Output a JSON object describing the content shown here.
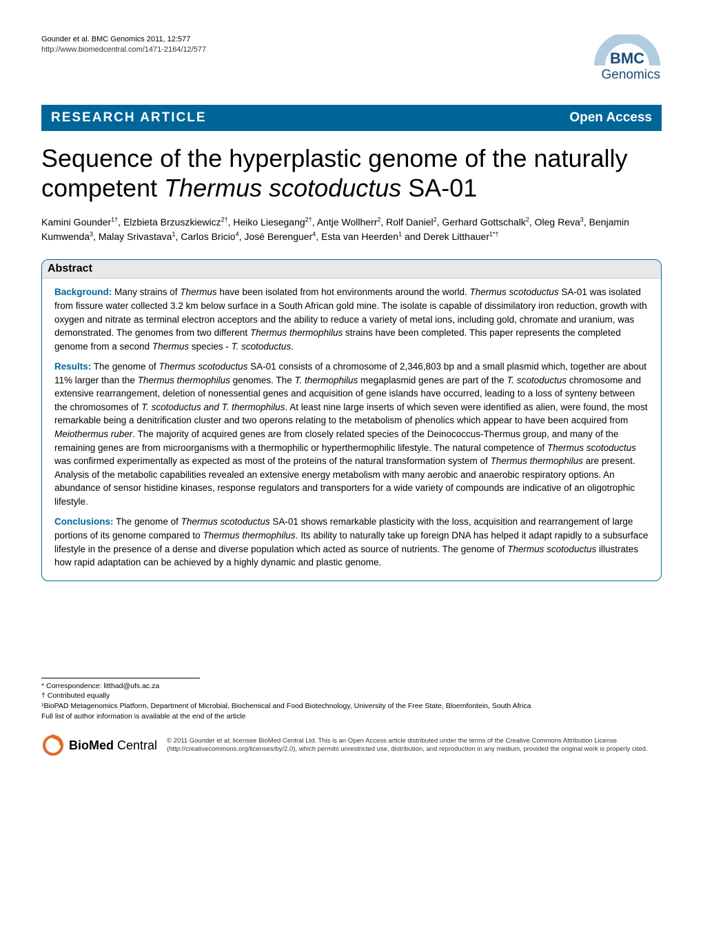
{
  "header": {
    "citation_line1": "Gounder et al. BMC Genomics 2011, 12:577",
    "citation_line2": "http://www.biomedcentral.com/1471-2164/12/577",
    "logo_bmc": "BMC",
    "logo_genomics": "Genomics",
    "logo_arc_color": "#b0cde0",
    "logo_text_color": "#1a4a7a"
  },
  "banner": {
    "left": "RESEARCH ARTICLE",
    "right": "Open Access",
    "bg_color": "#006699",
    "text_color": "#ffffff"
  },
  "title_parts": {
    "p1": "Sequence of the hyperplastic genome of the naturally competent ",
    "p2_italic": "Thermus scotoductus",
    "p3": " SA-01"
  },
  "authors_html": "Kamini Gounder<sup>1†</sup>, Elzbieta Brzuszkiewicz<sup>2†</sup>, Heiko Liesegang<sup>2†</sup>, Antje Wollherr<sup>2</sup>, Rolf Daniel<sup>2</sup>, Gerhard Gottschalk<sup>2</sup>, Oleg Reva<sup>3</sup>, Benjamin Kumwenda<sup>3</sup>, Malay Srivastava<sup>1</sup>, Carlos Bricio<sup>4</sup>, José Berenguer<sup>4</sup>, Esta van Heerden<sup>1</sup> and Derek Litthauer<sup>1*†</sup>",
  "abstract": {
    "heading": "Abstract",
    "background": {
      "label": "Background:",
      "text": " Many strains of <span class=\"italic\">Thermus</span> have been isolated from hot environments around the world. <span class=\"italic\">Thermus scotoductus</span> SA-01 was isolated from fissure water collected 3.2 km below surface in a South African gold mine. The isolate is capable of dissimilatory iron reduction, growth with oxygen and nitrate as terminal electron acceptors and the ability to reduce a variety of metal ions, including gold, chromate and uranium, was demonstrated. The genomes from two different <span class=\"italic\">Thermus thermophilus</span> strains have been completed. This paper represents the completed genome from a second <span class=\"italic\">Thermus</span> species - <span class=\"italic\">T. scotoductus</span>."
    },
    "results": {
      "label": "Results:",
      "text": " The genome of <span class=\"italic\">Thermus scotoductus</span> SA-01 consists of a chromosome of 2,346,803 bp and a small plasmid which, together are about 11% larger than the <span class=\"italic\">Thermus thermophilus</span> genomes. The <span class=\"italic\">T. thermophilus</span> megaplasmid genes are part of the <span class=\"italic\">T. scotoductus</span> chromosome and extensive rearrangement, deletion of nonessential genes and acquisition of gene islands have occurred, leading to a loss of synteny between the chromosomes of <span class=\"italic\">T. scotoductus and T. thermophilus</span>. At least nine large inserts of which seven were identified as alien, were found, the most remarkable being a denitrification cluster and two operons relating to the metabolism of phenolics which appear to have been acquired from <span class=\"italic\">Meiothermus ruber</span>. The majority of acquired genes are from closely related species of the Deinococcus-Thermus group, and many of the remaining genes are from microorganisms with a thermophilic or hyperthermophilic lifestyle. The natural competence of <span class=\"italic\">Thermus scotoductus</span> was confirmed experimentally as expected as most of the proteins of the natural transformation system of <span class=\"italic\">Thermus thermophilus</span> are present. Analysis of the metabolic capabilities revealed an extensive energy metabolism with many aerobic and anaerobic respiratory options. An abundance of sensor histidine kinases, response regulators and transporters for a wide variety of compounds are indicative of an oligotrophic lifestyle."
    },
    "conclusions": {
      "label": "Conclusions:",
      "text": " The genome of <span class=\"italic\">Thermus scotoductus</span> SA-01 shows remarkable plasticity with the loss, acquisition and rearrangement of large portions of its genome compared to <span class=\"italic\">Thermus thermophilus</span>. Its ability to naturally take up foreign DNA has helped it adapt rapidly to a subsurface lifestyle in the presence of a dense and diverse population which acted as source of nutrients. The genome of <span class=\"italic\">Thermus scotoductus</span> illustrates how rapid adaptation can be achieved by a highly dynamic and plastic genome."
    }
  },
  "footer": {
    "correspondence": "* Correspondence: litthad@ufs.ac.za",
    "contributed": "† Contributed equally",
    "affiliation": "¹BioPAD Metagenomics Platform, Department of Microbial, Biochemical and Food Biotechnology, University of the Free State, Bloemfontein, South Africa",
    "fulllist": "Full list of author information is available at the end of the article",
    "biomed_bio": "Bio",
    "biomed_med": "Med",
    "biomed_central": " Central",
    "biomed_ring_color": "#e06a2b",
    "license": "© 2011 Gounder et al; licensee BioMed Central Ltd. This is an Open Access article distributed under the terms of the Creative Commons Attribution License (http://creativecommons.org/licenses/by/2.0), which permits unrestricted use, distribution, and reproduction in any medium, provided the original work is properly cited."
  }
}
